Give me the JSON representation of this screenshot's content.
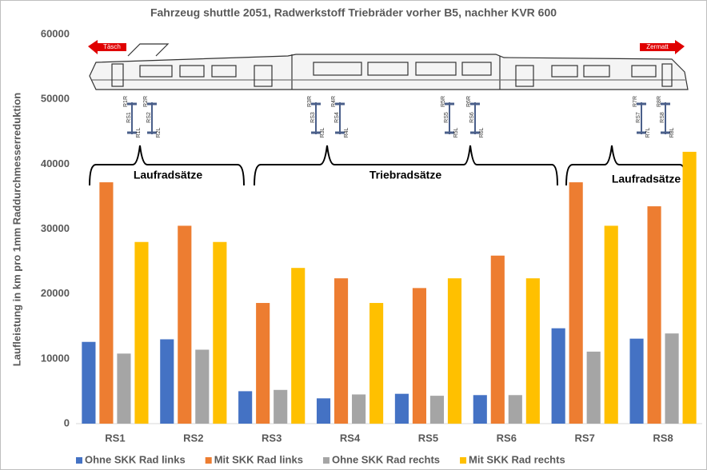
{
  "chart_data": {
    "type": "bar",
    "title": "Fahrzeug shuttle 2051, Radwerkstoff Triebräder vorher B5, nachher KVR 600",
    "y_label": "Laufleistung in km pro 1mm Raddurchmesserreduktion",
    "categories": [
      "RS1",
      "RS2",
      "RS3",
      "RS4",
      "RS5",
      "RS6",
      "RS7",
      "RS8"
    ],
    "series": [
      {
        "name": "Ohne SKK Rad links",
        "color": "#4472c4",
        "values": [
          12600,
          13000,
          5000,
          3900,
          4600,
          4400,
          14700,
          13100
        ]
      },
      {
        "name": "Mit SKK Rad links",
        "color": "#ed7d31",
        "values": [
          37200,
          30500,
          18600,
          22400,
          20900,
          25900,
          37200,
          33500
        ]
      },
      {
        "name": "Ohne SKK Rad rechts",
        "color": "#a5a5a5",
        "values": [
          10800,
          11400,
          5200,
          4500,
          4300,
          4400,
          11100,
          13900
        ]
      },
      {
        "name": "Mit SKK Rad rechts",
        "color": "#ffc000",
        "values": [
          28000,
          28000,
          24000,
          18600,
          22400,
          22400,
          30500,
          41900
        ]
      }
    ],
    "ylim": [
      0,
      60000
    ],
    "yticks": [
      0,
      10000,
      20000,
      30000,
      40000,
      50000,
      60000
    ],
    "grid": false,
    "legend": "bottom",
    "annotations": {
      "groups": [
        "Laufradsätze",
        "Triebradsätze",
        "Laufradsätze"
      ],
      "left_direction": "Täsch",
      "right_direction": "Zermatt"
    },
    "wheelset_labels": [
      {
        "right": "R1R",
        "set": "RS1",
        "left": "R1L"
      },
      {
        "right": "R2R",
        "set": "RS2",
        "left": "R2L"
      },
      {
        "right": "R3R",
        "set": "RS3",
        "left": "R3L"
      },
      {
        "right": "R4R",
        "set": "RS4",
        "left": "R4L"
      },
      {
        "right": "R5R",
        "set": "RS5",
        "left": "R5L"
      },
      {
        "right": "R6R",
        "set": "RS6",
        "left": "R6L"
      },
      {
        "right": "R7R",
        "set": "RS7",
        "left": "R7L"
      },
      {
        "right": "R8R",
        "set": "RS8",
        "left": "R8L"
      }
    ]
  }
}
